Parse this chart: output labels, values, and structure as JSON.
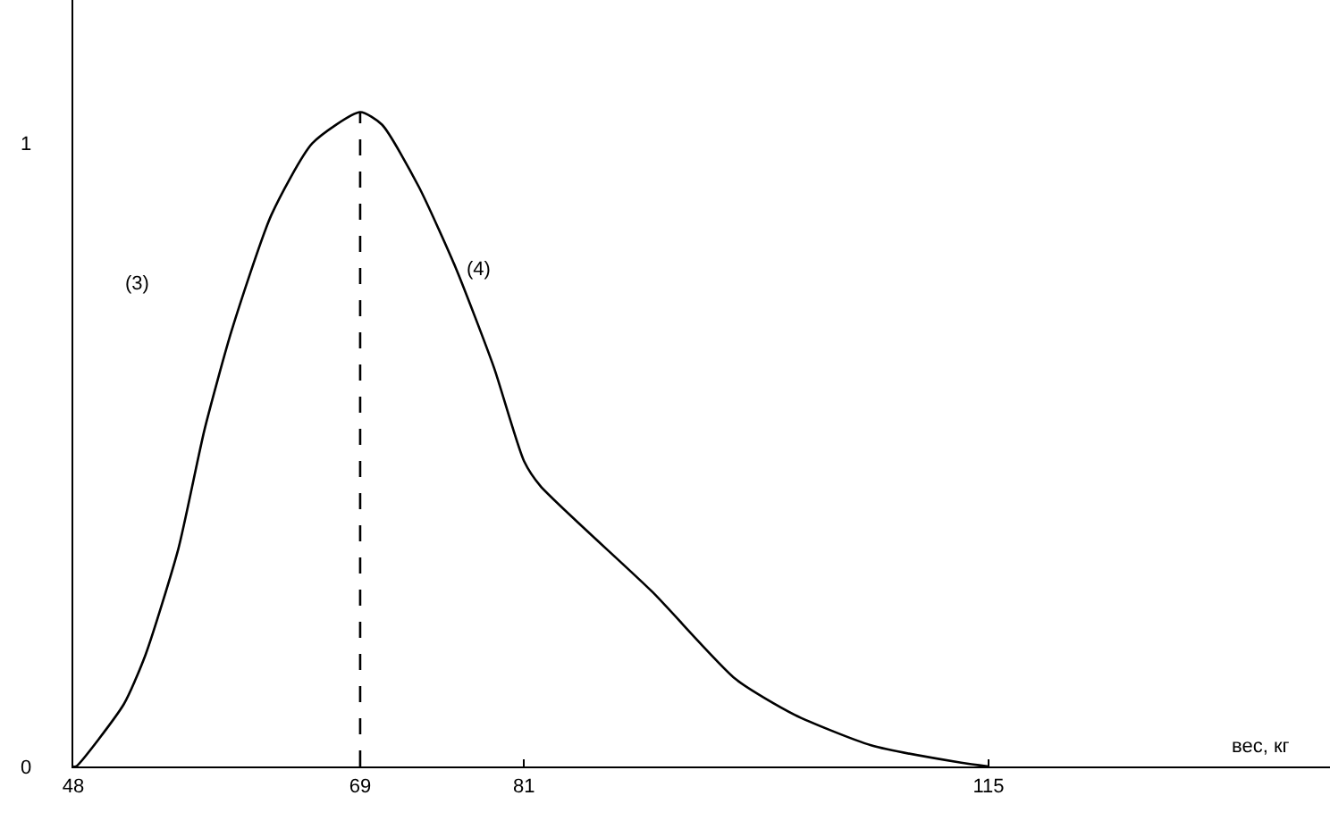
{
  "chart_data": {
    "type": "line",
    "xlabel": "вес, кг",
    "x": [
      48,
      48.2,
      51.7,
      53.3,
      55.7,
      57.6,
      59.6,
      62.5,
      65.5,
      69,
      70.6,
      73.3,
      76,
      78.8,
      81,
      82.2,
      90.4,
      96.5,
      100.8,
      106.4,
      113,
      115
    ],
    "series": [
      {
        "color": "#000000",
        "values": [
          0,
          0,
          0.1,
          0.18,
          0.35,
          0.54,
          0.7,
          0.885,
          1,
          1.05,
          1.03,
          0.93,
          0.8,
          0.64,
          0.49,
          0.45,
          0.28,
          0.14,
          0.083,
          0.034,
          0.006,
          0
        ]
      }
    ],
    "xlim": [
      48,
      140
    ],
    "xticks": [
      48,
      69,
      81,
      115
    ],
    "ylim": [
      0,
      1.23
    ],
    "yticks": [
      0,
      1
    ],
    "ref_lines": [
      {
        "axis": "x",
        "value": 69,
        "line_style": "dashed",
        "color": "#000000"
      }
    ],
    "annotations": [
      "(3)",
      "(4)"
    ],
    "grid": false,
    "marker": "none",
    "line_style": "solid"
  }
}
